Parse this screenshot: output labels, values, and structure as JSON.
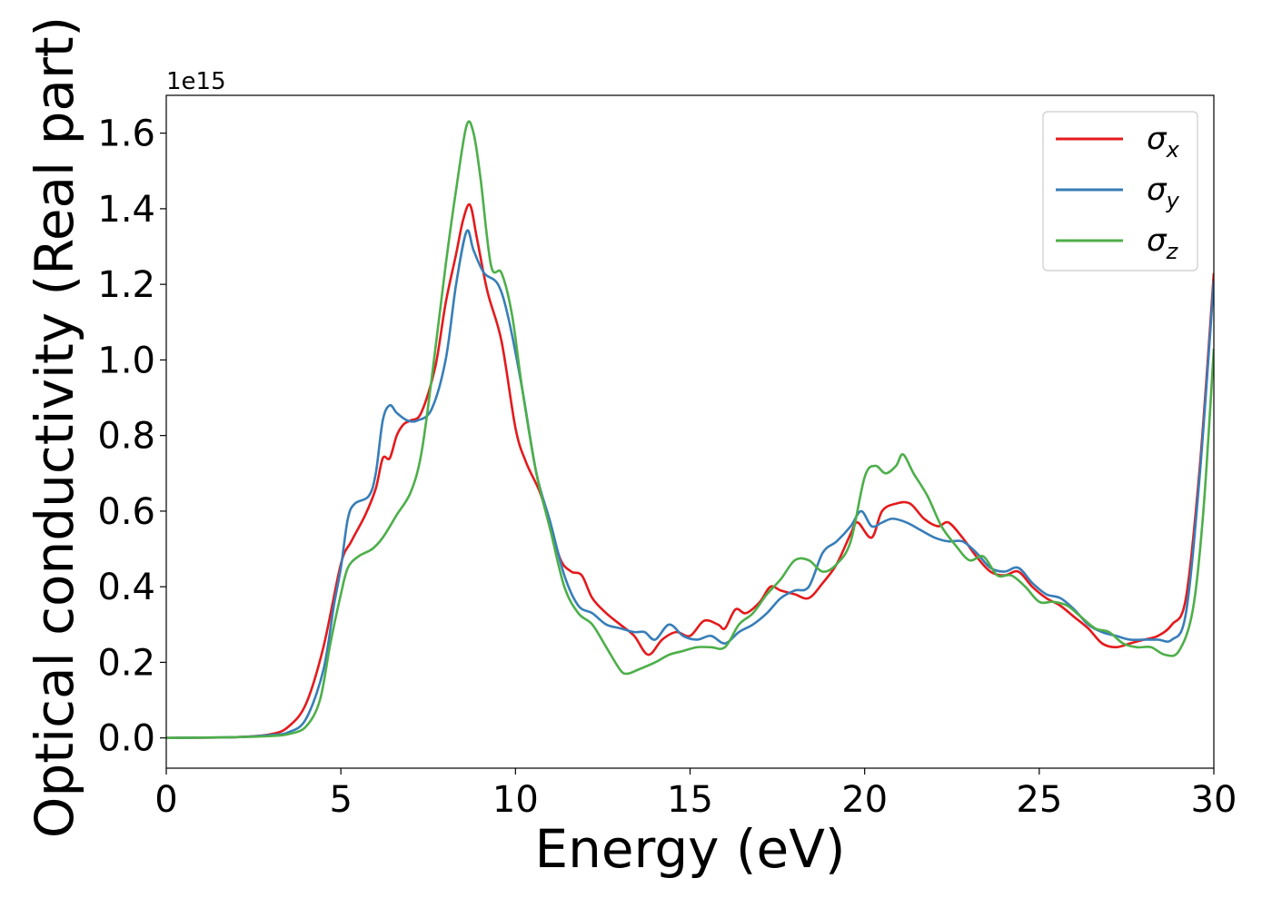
{
  "chart_data": {
    "type": "line",
    "title": "",
    "xlabel": "Energy (eV)",
    "ylabel": "Optical conductivity (Real part)",
    "y_offset_label": "1e15",
    "xlim": [
      0,
      30
    ],
    "ylim": [
      -0.08,
      1.7
    ],
    "x_ticks": [
      0,
      5,
      10,
      15,
      20,
      25,
      30
    ],
    "x_tick_labels": [
      "0",
      "5",
      "10",
      "15",
      "20",
      "25",
      "30"
    ],
    "y_ticks": [
      0.0,
      0.2,
      0.4,
      0.6,
      0.8,
      1.0,
      1.2,
      1.4,
      1.6
    ],
    "y_tick_labels": [
      "0.0",
      "0.2",
      "0.4",
      "0.6",
      "0.8",
      "1.0",
      "1.2",
      "1.4",
      "1.6"
    ],
    "grid": false,
    "legend_position": "top-right",
    "series": [
      {
        "name": "σ",
        "subscript": "x",
        "color": "#e41a1c",
        "points": [
          [
            0,
            0
          ],
          [
            2,
            0.002
          ],
          [
            3,
            0.01
          ],
          [
            3.5,
            0.03
          ],
          [
            4,
            0.09
          ],
          [
            4.5,
            0.24
          ],
          [
            5,
            0.46
          ],
          [
            5.3,
            0.52
          ],
          [
            5.7,
            0.59
          ],
          [
            6,
            0.66
          ],
          [
            6.2,
            0.74
          ],
          [
            6.4,
            0.74
          ],
          [
            6.6,
            0.8
          ],
          [
            6.8,
            0.83
          ],
          [
            7,
            0.84
          ],
          [
            7.3,
            0.86
          ],
          [
            7.7,
            0.98
          ],
          [
            8,
            1.15
          ],
          [
            8.3,
            1.28
          ],
          [
            8.5,
            1.37
          ],
          [
            8.7,
            1.41
          ],
          [
            8.9,
            1.32
          ],
          [
            9.2,
            1.18
          ],
          [
            9.6,
            1.05
          ],
          [
            10,
            0.82
          ],
          [
            10.3,
            0.73
          ],
          [
            10.7,
            0.65
          ],
          [
            11,
            0.56
          ],
          [
            11.3,
            0.47
          ],
          [
            11.6,
            0.44
          ],
          [
            11.9,
            0.43
          ],
          [
            12.2,
            0.37
          ],
          [
            12.6,
            0.33
          ],
          [
            13,
            0.3
          ],
          [
            13.4,
            0.27
          ],
          [
            13.8,
            0.22
          ],
          [
            14.2,
            0.26
          ],
          [
            14.6,
            0.28
          ],
          [
            15,
            0.27
          ],
          [
            15.4,
            0.31
          ],
          [
            15.8,
            0.3
          ],
          [
            16,
            0.29
          ],
          [
            16.3,
            0.34
          ],
          [
            16.6,
            0.33
          ],
          [
            17,
            0.36
          ],
          [
            17.3,
            0.4
          ],
          [
            17.6,
            0.39
          ],
          [
            18,
            0.38
          ],
          [
            18.4,
            0.37
          ],
          [
            18.8,
            0.41
          ],
          [
            19.2,
            0.46
          ],
          [
            19.6,
            0.54
          ],
          [
            19.8,
            0.57
          ],
          [
            20.2,
            0.53
          ],
          [
            20.5,
            0.6
          ],
          [
            20.9,
            0.62
          ],
          [
            21.3,
            0.62
          ],
          [
            21.7,
            0.58
          ],
          [
            22.1,
            0.56
          ],
          [
            22.4,
            0.57
          ],
          [
            22.8,
            0.53
          ],
          [
            23.2,
            0.48
          ],
          [
            23.6,
            0.44
          ],
          [
            24,
            0.43
          ],
          [
            24.4,
            0.44
          ],
          [
            24.8,
            0.4
          ],
          [
            25.2,
            0.37
          ],
          [
            25.6,
            0.35
          ],
          [
            26,
            0.32
          ],
          [
            26.4,
            0.29
          ],
          [
            26.8,
            0.25
          ],
          [
            27.2,
            0.24
          ],
          [
            27.6,
            0.25
          ],
          [
            28,
            0.26
          ],
          [
            28.4,
            0.27
          ],
          [
            28.8,
            0.3
          ],
          [
            29.2,
            0.37
          ],
          [
            29.6,
            0.72
          ],
          [
            30,
            1.23
          ]
        ]
      },
      {
        "name": "σ",
        "subscript": "y",
        "color": "#377eb8",
        "points": [
          [
            0,
            0
          ],
          [
            2,
            0.002
          ],
          [
            3,
            0.008
          ],
          [
            3.5,
            0.015
          ],
          [
            4,
            0.05
          ],
          [
            4.5,
            0.18
          ],
          [
            4.8,
            0.35
          ],
          [
            5,
            0.45
          ],
          [
            5.2,
            0.58
          ],
          [
            5.4,
            0.62
          ],
          [
            5.8,
            0.64
          ],
          [
            6,
            0.7
          ],
          [
            6.2,
            0.84
          ],
          [
            6.4,
            0.88
          ],
          [
            6.6,
            0.86
          ],
          [
            6.9,
            0.84
          ],
          [
            7.2,
            0.84
          ],
          [
            7.6,
            0.87
          ],
          [
            8,
            1.0
          ],
          [
            8.3,
            1.2
          ],
          [
            8.6,
            1.34
          ],
          [
            8.8,
            1.29
          ],
          [
            9.1,
            1.23
          ],
          [
            9.5,
            1.2
          ],
          [
            9.8,
            1.11
          ],
          [
            10.2,
            0.92
          ],
          [
            10.6,
            0.7
          ],
          [
            11,
            0.57
          ],
          [
            11.4,
            0.43
          ],
          [
            11.8,
            0.35
          ],
          [
            12.2,
            0.33
          ],
          [
            12.6,
            0.3
          ],
          [
            13,
            0.29
          ],
          [
            13.4,
            0.28
          ],
          [
            13.7,
            0.28
          ],
          [
            14,
            0.26
          ],
          [
            14.4,
            0.3
          ],
          [
            14.8,
            0.27
          ],
          [
            15.2,
            0.26
          ],
          [
            15.6,
            0.27
          ],
          [
            16,
            0.25
          ],
          [
            16.4,
            0.28
          ],
          [
            16.8,
            0.3
          ],
          [
            17.2,
            0.33
          ],
          [
            17.6,
            0.37
          ],
          [
            18,
            0.39
          ],
          [
            18.4,
            0.4
          ],
          [
            18.8,
            0.49
          ],
          [
            19.2,
            0.52
          ],
          [
            19.6,
            0.56
          ],
          [
            19.9,
            0.6
          ],
          [
            20.2,
            0.56
          ],
          [
            20.5,
            0.57
          ],
          [
            20.8,
            0.58
          ],
          [
            21.2,
            0.57
          ],
          [
            21.6,
            0.55
          ],
          [
            22,
            0.53
          ],
          [
            22.4,
            0.52
          ],
          [
            22.8,
            0.52
          ],
          [
            23.2,
            0.49
          ],
          [
            23.6,
            0.45
          ],
          [
            24,
            0.44
          ],
          [
            24.4,
            0.45
          ],
          [
            24.8,
            0.41
          ],
          [
            25.2,
            0.38
          ],
          [
            25.6,
            0.37
          ],
          [
            26,
            0.34
          ],
          [
            26.4,
            0.3
          ],
          [
            26.8,
            0.28
          ],
          [
            27.2,
            0.27
          ],
          [
            27.6,
            0.26
          ],
          [
            28,
            0.26
          ],
          [
            28.4,
            0.26
          ],
          [
            28.8,
            0.26
          ],
          [
            29.2,
            0.33
          ],
          [
            29.6,
            0.7
          ],
          [
            30,
            1.21
          ]
        ]
      },
      {
        "name": "σ",
        "subscript": "z",
        "color": "#4daf4a",
        "points": [
          [
            0,
            0
          ],
          [
            2,
            0.002
          ],
          [
            3,
            0.005
          ],
          [
            3.5,
            0.01
          ],
          [
            4,
            0.03
          ],
          [
            4.4,
            0.1
          ],
          [
            4.7,
            0.25
          ],
          [
            5,
            0.38
          ],
          [
            5.2,
            0.45
          ],
          [
            5.5,
            0.48
          ],
          [
            5.9,
            0.5
          ],
          [
            6.2,
            0.53
          ],
          [
            6.6,
            0.59
          ],
          [
            7,
            0.65
          ],
          [
            7.3,
            0.75
          ],
          [
            7.6,
            0.95
          ],
          [
            8,
            1.25
          ],
          [
            8.3,
            1.45
          ],
          [
            8.6,
            1.62
          ],
          [
            8.8,
            1.6
          ],
          [
            9,
            1.48
          ],
          [
            9.3,
            1.25
          ],
          [
            9.6,
            1.23
          ],
          [
            9.9,
            1.12
          ],
          [
            10.2,
            0.92
          ],
          [
            10.6,
            0.7
          ],
          [
            11,
            0.55
          ],
          [
            11.4,
            0.4
          ],
          [
            11.8,
            0.33
          ],
          [
            12.2,
            0.3
          ],
          [
            12.6,
            0.24
          ],
          [
            13,
            0.18
          ],
          [
            13.2,
            0.17
          ],
          [
            13.5,
            0.18
          ],
          [
            14,
            0.2
          ],
          [
            14.4,
            0.22
          ],
          [
            14.8,
            0.23
          ],
          [
            15.2,
            0.24
          ],
          [
            15.6,
            0.24
          ],
          [
            16,
            0.24
          ],
          [
            16.4,
            0.3
          ],
          [
            16.8,
            0.33
          ],
          [
            17.2,
            0.38
          ],
          [
            17.6,
            0.42
          ],
          [
            18,
            0.47
          ],
          [
            18.4,
            0.47
          ],
          [
            18.8,
            0.44
          ],
          [
            19.2,
            0.46
          ],
          [
            19.6,
            0.52
          ],
          [
            20,
            0.69
          ],
          [
            20.3,
            0.72
          ],
          [
            20.6,
            0.7
          ],
          [
            20.9,
            0.72
          ],
          [
            21.1,
            0.75
          ],
          [
            21.4,
            0.7
          ],
          [
            21.8,
            0.64
          ],
          [
            22.2,
            0.56
          ],
          [
            22.6,
            0.51
          ],
          [
            23,
            0.47
          ],
          [
            23.4,
            0.48
          ],
          [
            23.8,
            0.43
          ],
          [
            24.2,
            0.43
          ],
          [
            24.6,
            0.4
          ],
          [
            25,
            0.36
          ],
          [
            25.4,
            0.36
          ],
          [
            25.8,
            0.35
          ],
          [
            26.2,
            0.32
          ],
          [
            26.6,
            0.29
          ],
          [
            27,
            0.28
          ],
          [
            27.4,
            0.25
          ],
          [
            27.8,
            0.24
          ],
          [
            28.2,
            0.24
          ],
          [
            28.6,
            0.22
          ],
          [
            29,
            0.23
          ],
          [
            29.4,
            0.34
          ],
          [
            29.7,
            0.6
          ],
          [
            30,
            1.03
          ]
        ]
      }
    ]
  }
}
